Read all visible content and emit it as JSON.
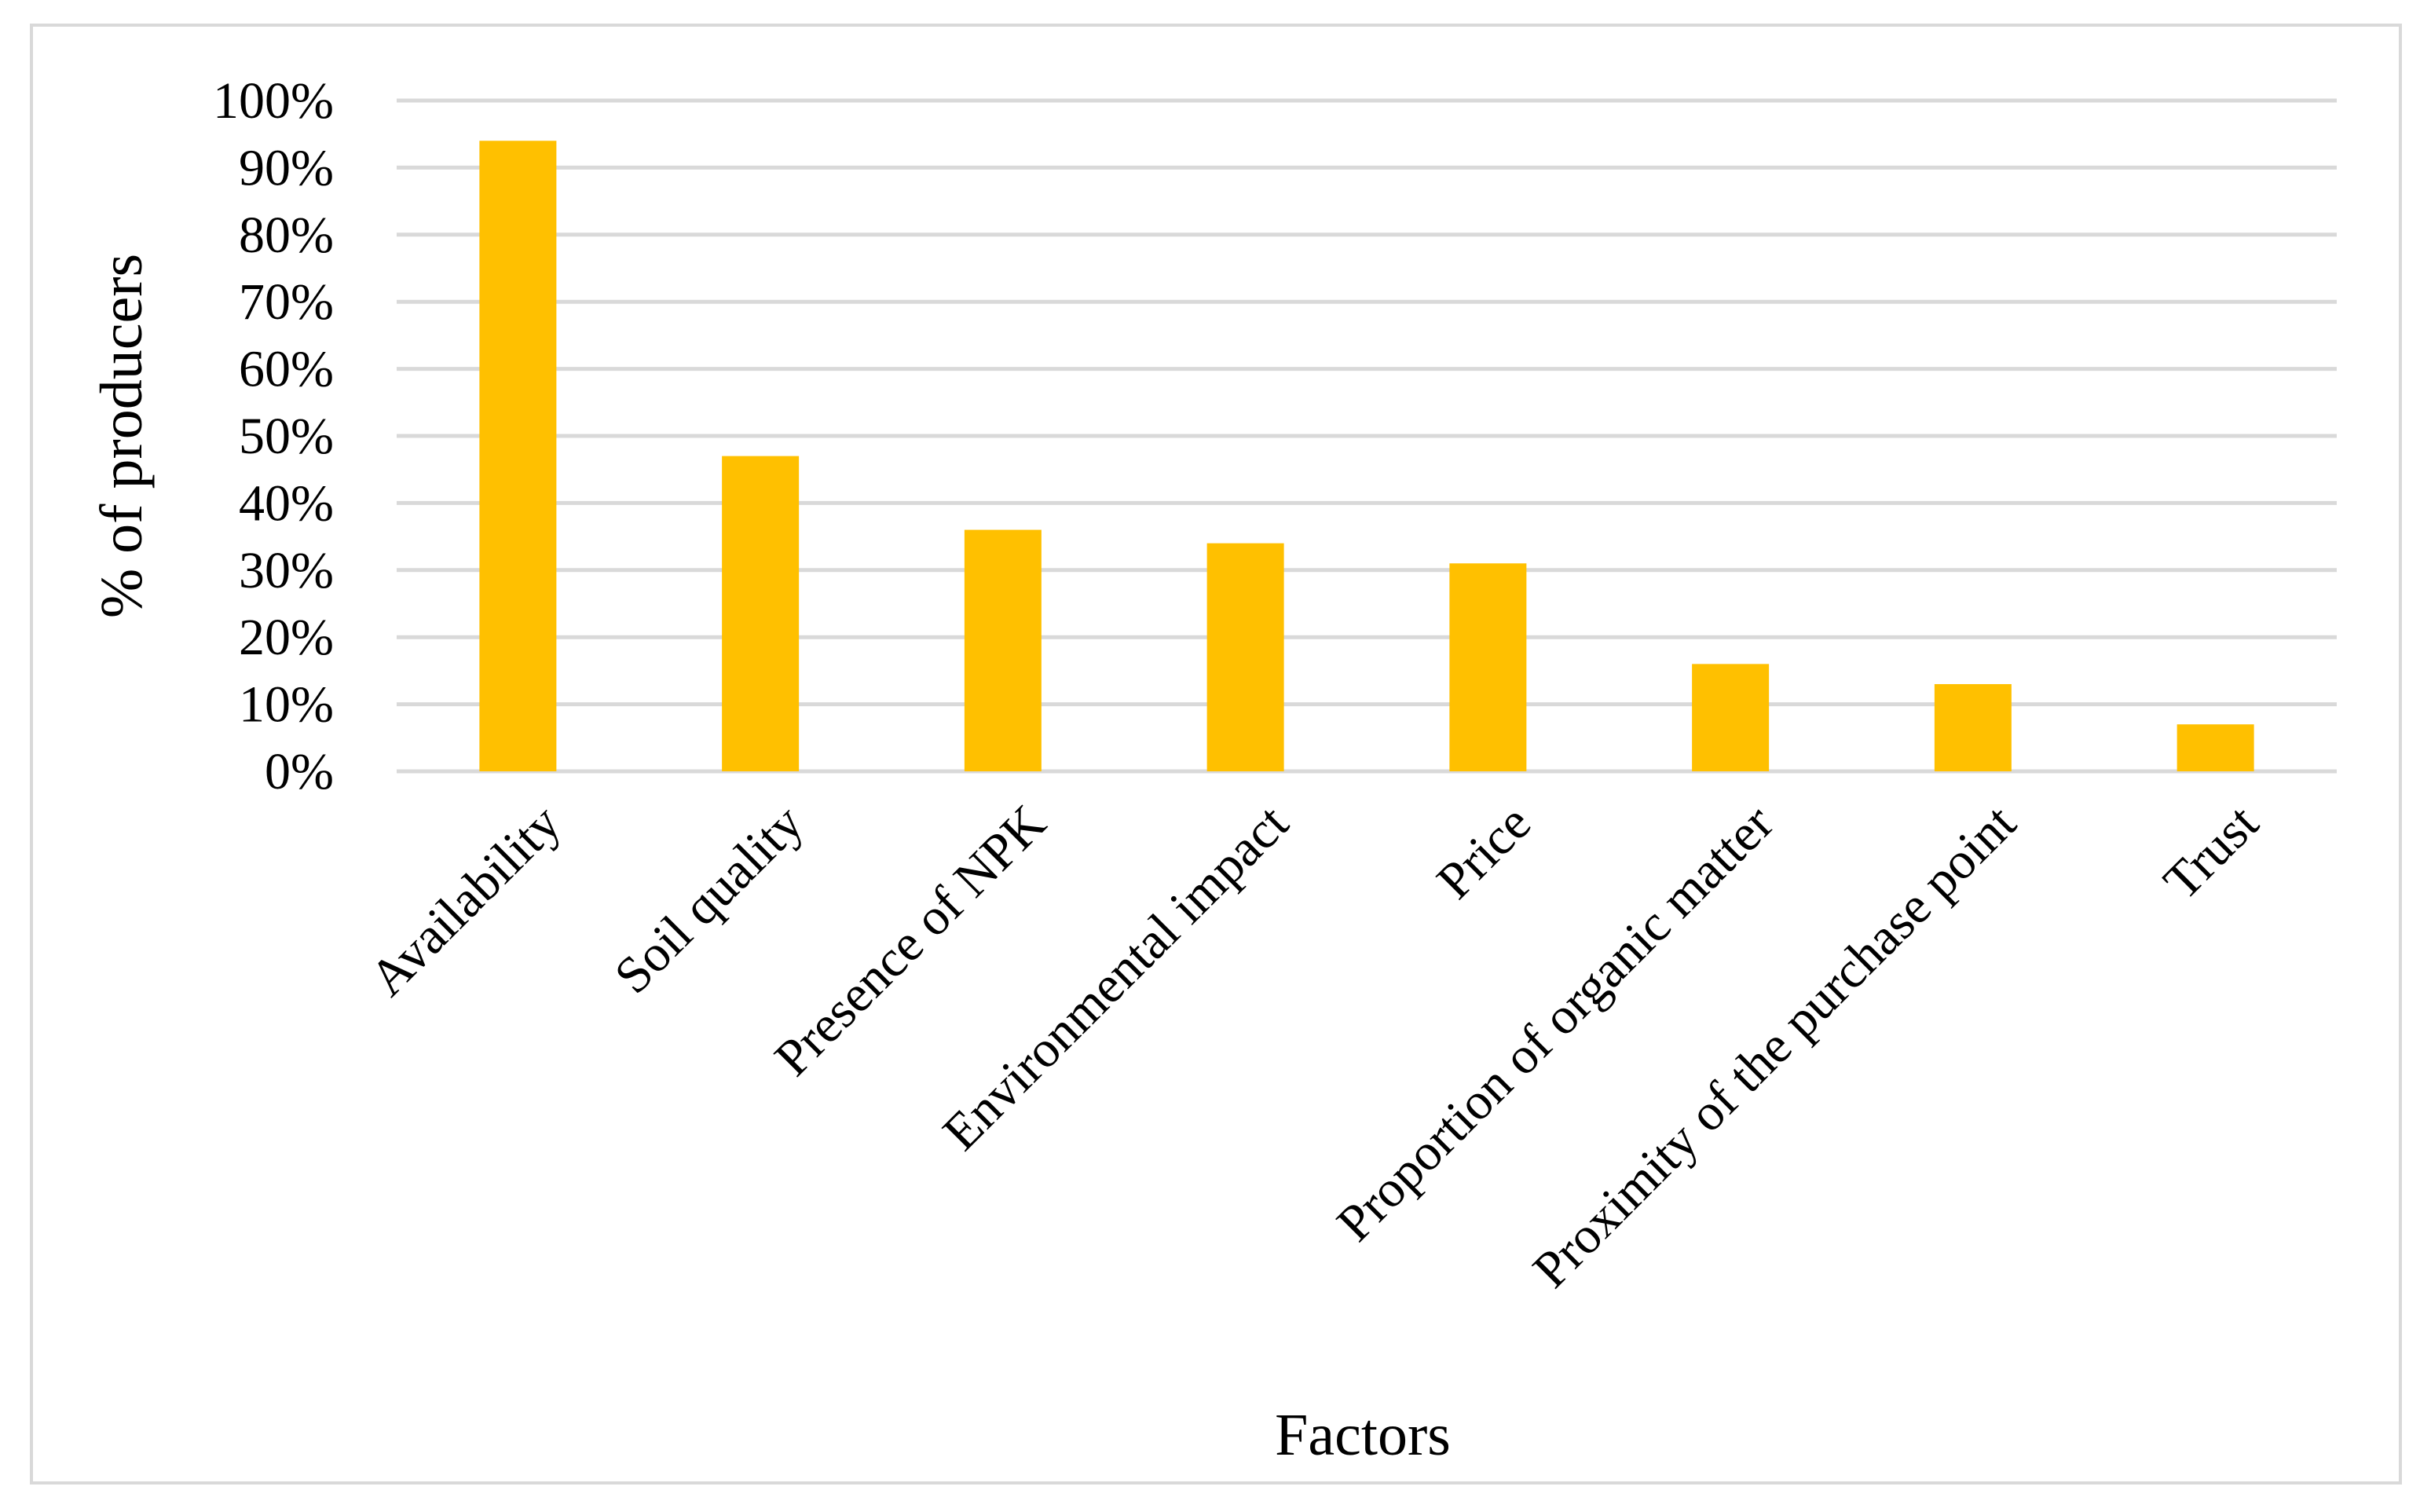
{
  "chart_data": {
    "type": "bar",
    "title": "",
    "xlabel": "Factors",
    "ylabel": "% of producers",
    "categories": [
      "Availability",
      "Soil quality",
      "Presence of NPK",
      "Environmental impact",
      "Price",
      "Proportion of organic matter",
      "Proximity of the purchase point",
      "Trust"
    ],
    "values": [
      94,
      47,
      36,
      34,
      31,
      16,
      13,
      7
    ],
    "ylim": [
      0,
      100
    ],
    "yticks": [
      0,
      10,
      20,
      30,
      40,
      50,
      60,
      70,
      80,
      90,
      100
    ],
    "ytick_labels": [
      "0%",
      "10%",
      "20%",
      "30%",
      "40%",
      "50%",
      "60%",
      "70%",
      "80%",
      "90%",
      "100%"
    ],
    "grid": true,
    "legend": "none",
    "bar_color": "#FFC000",
    "grid_color": "#d9d9d9"
  }
}
